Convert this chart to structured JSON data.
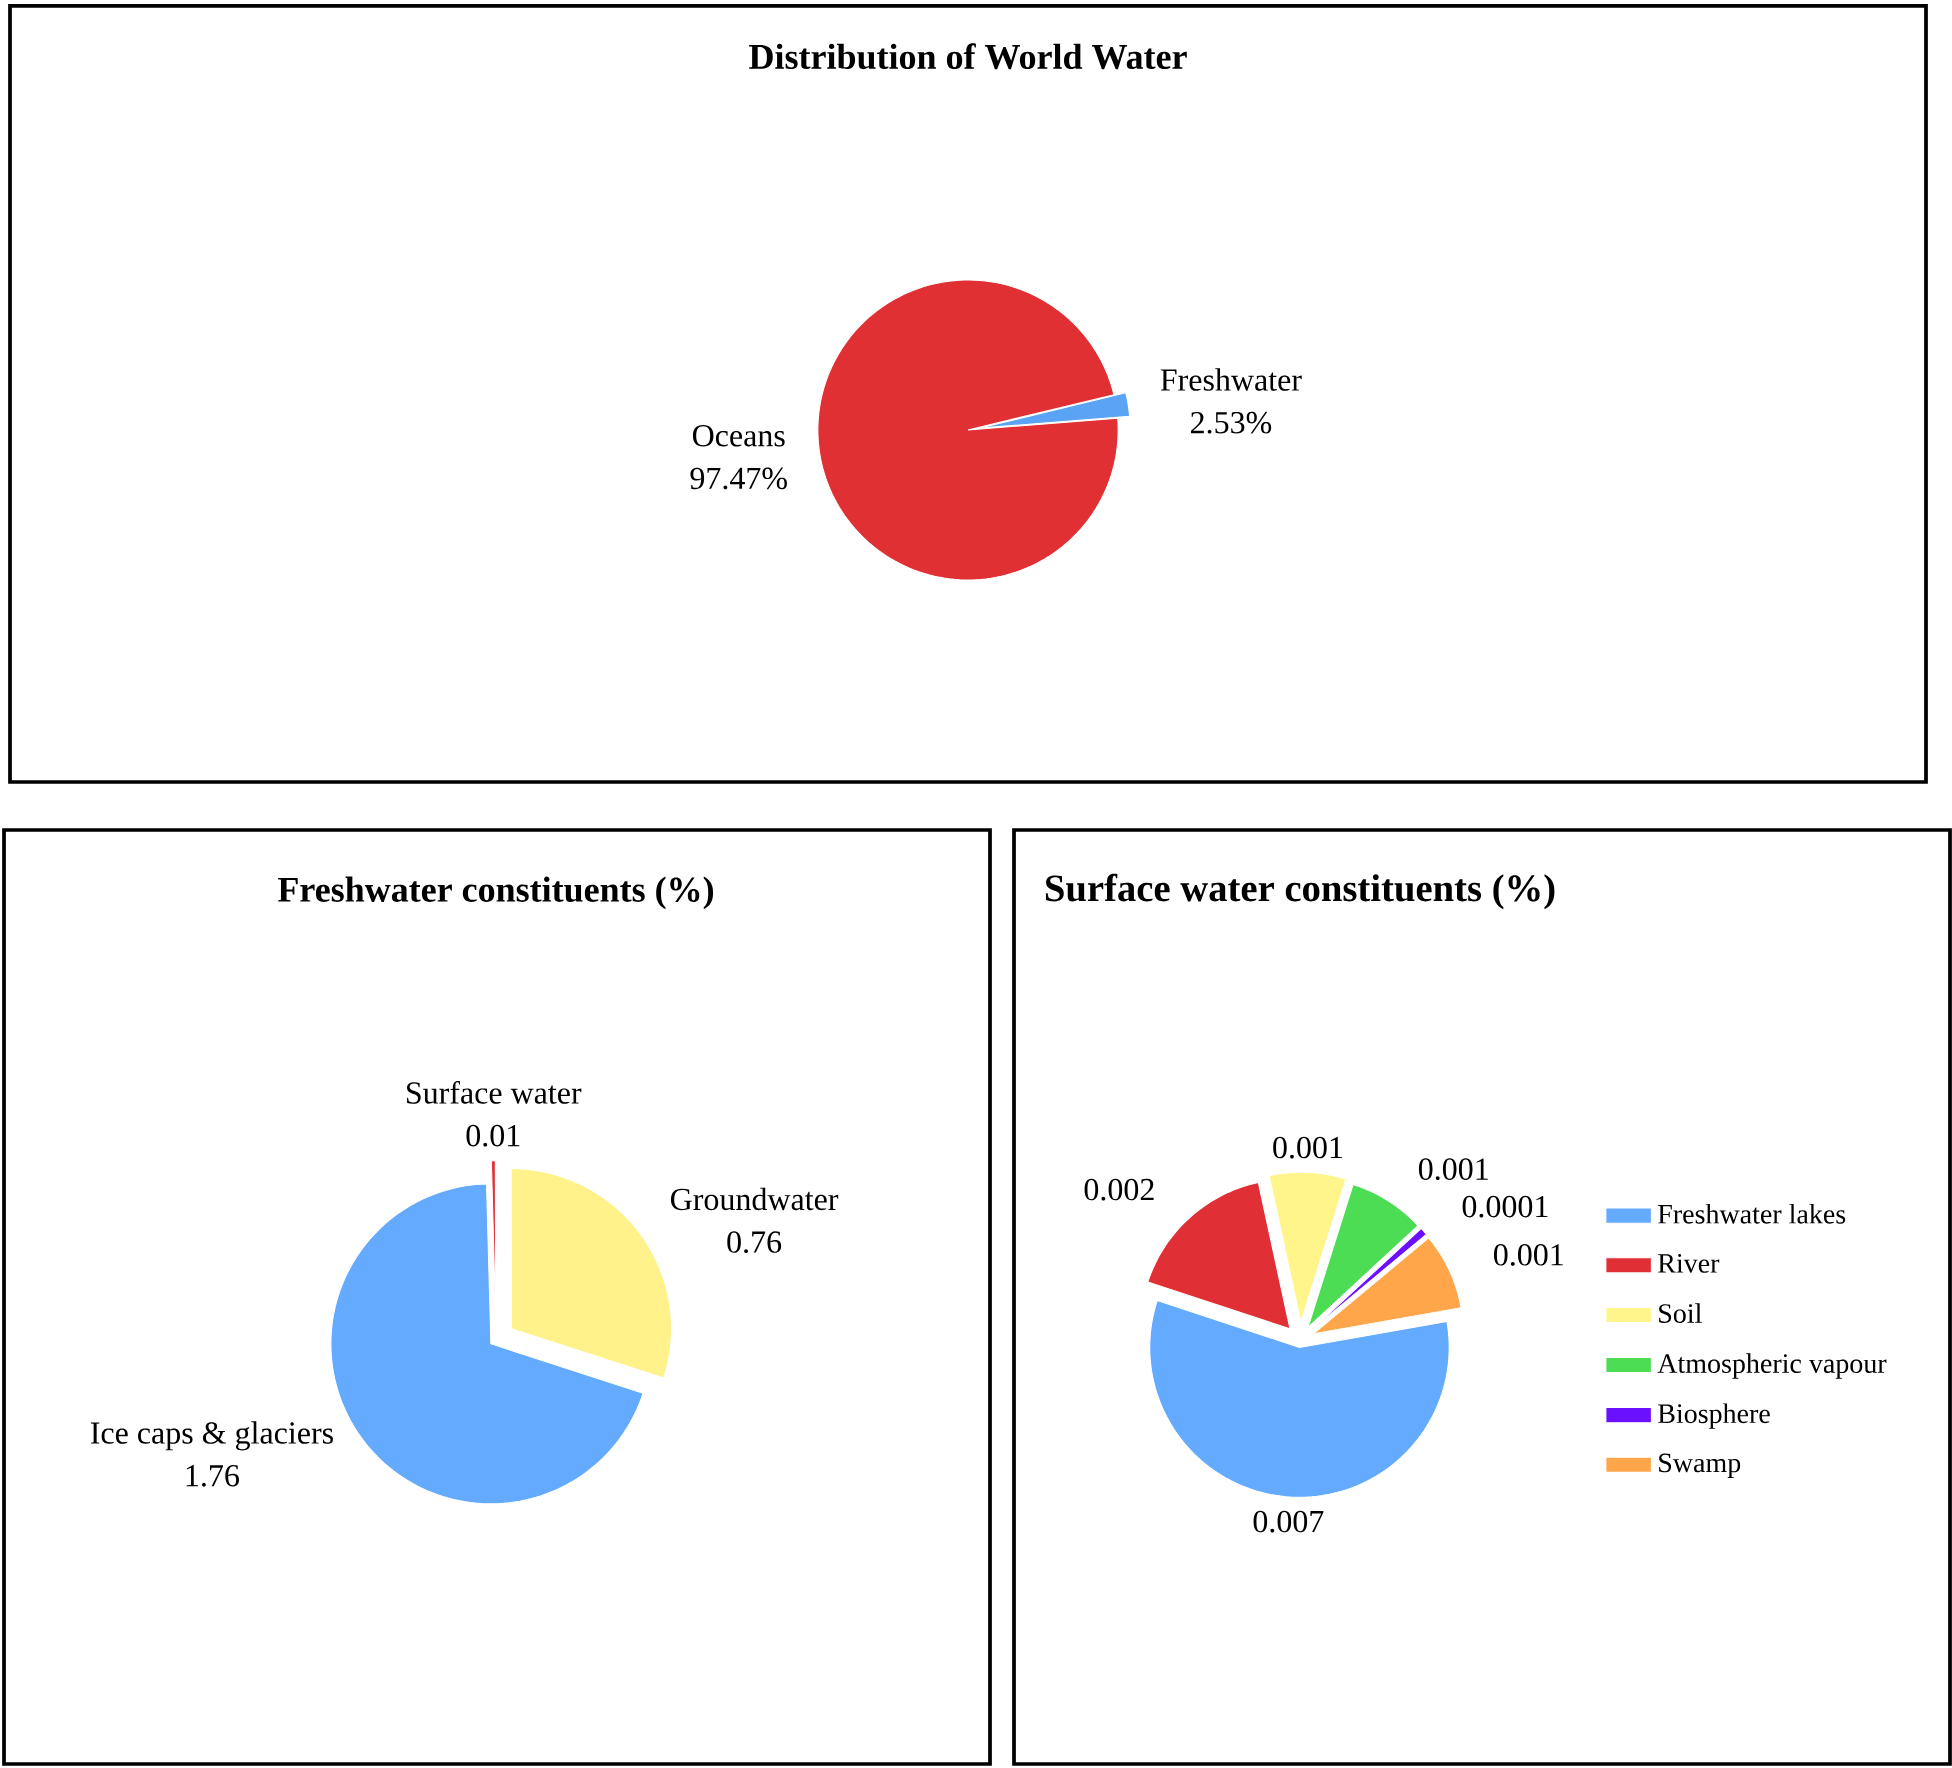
{
  "chart_data": [
    {
      "type": "pie",
      "title": "Distribution of World Water",
      "categories": [
        "Oceans",
        "Freshwater"
      ],
      "values": [
        97.47,
        2.53
      ],
      "value_labels": [
        "97.47%",
        "2.53%"
      ],
      "colors": [
        "#e03034",
        "#5ba3f5"
      ]
    },
    {
      "type": "pie",
      "title": "Freshwater constituents (%)",
      "categories": [
        "Ice caps & glaciers",
        "Surface water",
        "Groundwater"
      ],
      "values": [
        1.76,
        0.01,
        0.76
      ],
      "data_labels": true,
      "colors": [
        "#64aaff",
        "#e03036",
        "#fff28a"
      ]
    },
    {
      "type": "pie",
      "title": "Surface water constituents (%)",
      "categories": [
        "Freshwater lakes",
        "River",
        "Soil",
        "Atmospheric vapour",
        "Biosphere",
        "Swamp"
      ],
      "values": [
        0.007,
        0.002,
        0.001,
        0.001,
        0.0001,
        0.001
      ],
      "data_labels": true,
      "legend": "right",
      "colors": [
        "#64aaff",
        "#e03036",
        "#fff58a",
        "#4ddd55",
        "#6a10ff",
        "#ffa54a"
      ]
    }
  ]
}
